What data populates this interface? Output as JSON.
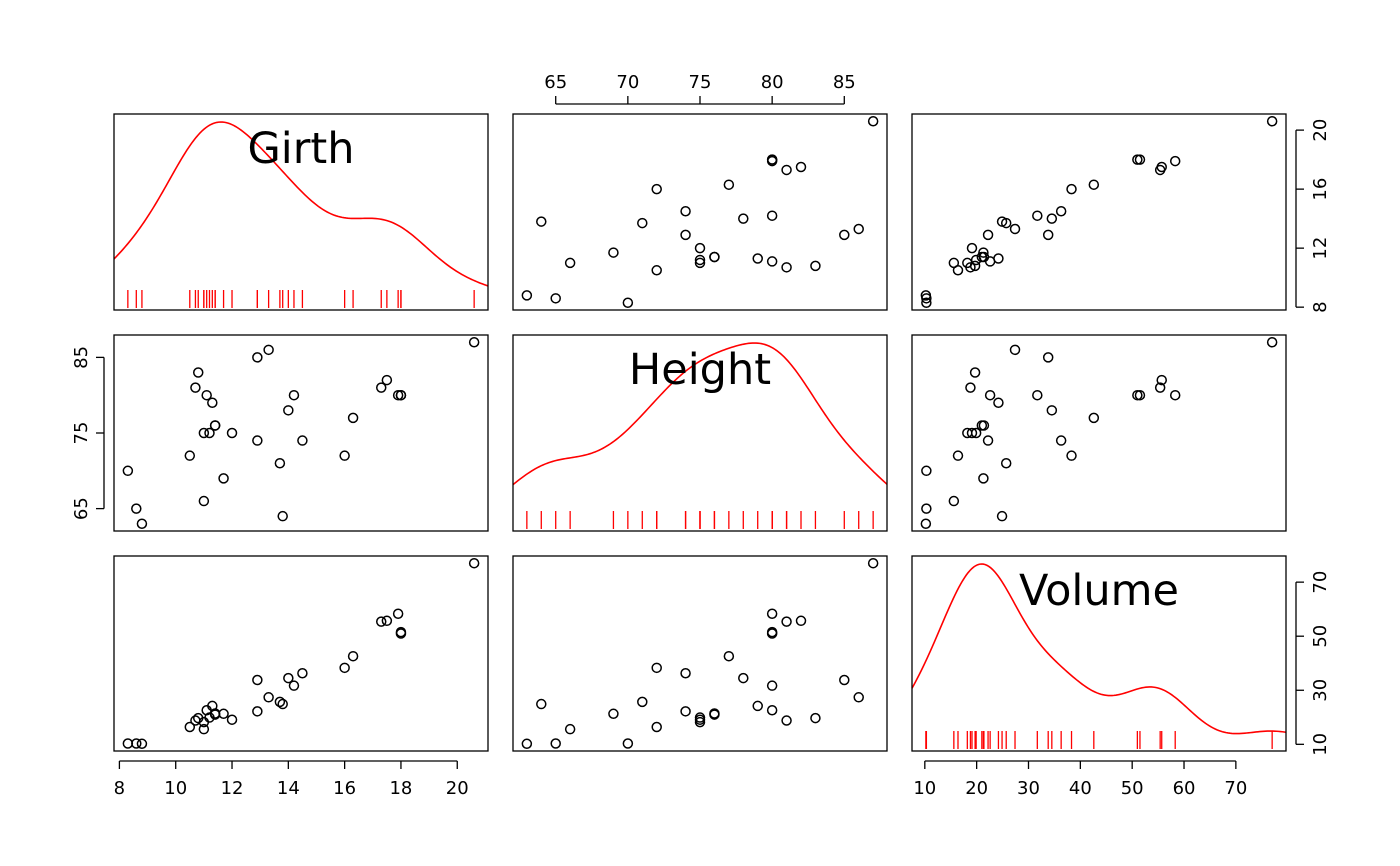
{
  "chart_data": {
    "type": "scatter-matrix",
    "variables": [
      "Girth",
      "Height",
      "Volume"
    ],
    "diagonal": "kernel-density with rug",
    "density_color": "#ff0000",
    "point_color": "#000000",
    "ranges": {
      "Girth": [
        8.3,
        20.6
      ],
      "Height": [
        63,
        87
      ],
      "Volume": [
        10.2,
        77.0
      ]
    },
    "ticks": {
      "Girth": [
        8,
        10,
        12,
        14,
        16,
        18,
        20
      ],
      "Girth_right": [
        8,
        12,
        16,
        20
      ],
      "Height": [
        65,
        70,
        75,
        80,
        85
      ],
      "Height_left": [
        65,
        75,
        85
      ],
      "Volume": [
        10,
        20,
        30,
        40,
        50,
        60,
        70
      ],
      "Volume_right": [
        10,
        30,
        50,
        70
      ]
    },
    "data": {
      "Girth": [
        8.3,
        8.6,
        8.8,
        10.5,
        10.7,
        10.8,
        11.0,
        11.0,
        11.1,
        11.2,
        11.3,
        11.4,
        11.4,
        11.7,
        12.0,
        12.9,
        12.9,
        13.3,
        13.7,
        13.8,
        14.0,
        14.2,
        14.5,
        16.0,
        16.3,
        17.3,
        17.5,
        17.9,
        18.0,
        18.0,
        20.6
      ],
      "Height": [
        70,
        65,
        63,
        72,
        81,
        83,
        66,
        75,
        80,
        75,
        79,
        76,
        76,
        69,
        75,
        74,
        85,
        86,
        71,
        64,
        78,
        80,
        74,
        72,
        77,
        81,
        82,
        80,
        80,
        80,
        87
      ],
      "Volume": [
        10.3,
        10.3,
        10.2,
        16.4,
        18.8,
        19.7,
        15.6,
        18.2,
        22.6,
        19.9,
        24.2,
        21.0,
        21.4,
        21.3,
        19.1,
        22.2,
        33.8,
        27.4,
        25.7,
        24.9,
        34.5,
        31.7,
        36.3,
        38.3,
        42.6,
        55.4,
        55.7,
        58.3,
        51.5,
        51.0,
        77.0
      ]
    }
  }
}
